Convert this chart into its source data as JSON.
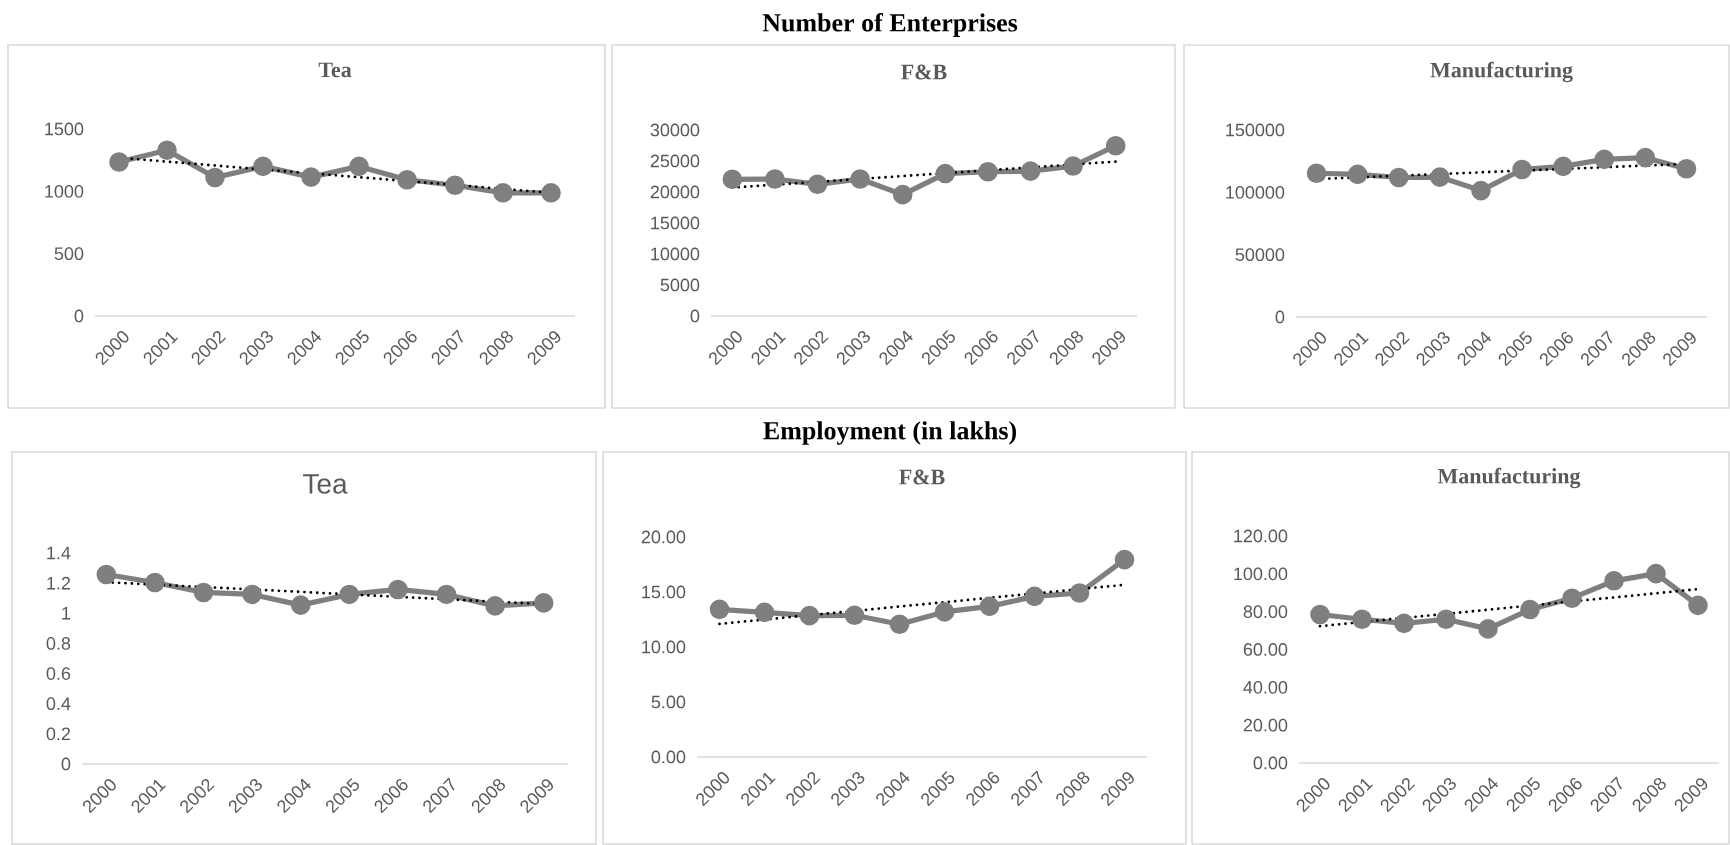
{
  "chart_data": [
    {
      "type": "line",
      "title": "Tea",
      "annotations": [
        "Number of Enterprises"
      ],
      "categories": [
        "2000",
        "2001",
        "2002",
        "2003",
        "2004",
        "2005",
        "2006",
        "2007",
        "2008",
        "2009"
      ],
      "marker": "circle",
      "line_style": "solid",
      "ylim": [
        0,
        1500
      ],
      "yticks": [
        0,
        500,
        1000,
        1500
      ],
      "series": [
        {
          "color": "#7f7f7f",
          "values": [
            1235,
            1330,
            1111,
            1200,
            1114,
            1200,
            1093,
            1049,
            988,
            988
          ]
        },
        {
          "type": "line",
          "color": "#000000",
          "line_style": "dotted",
          "marker": "none",
          "values": [
            1269,
            1238,
            1207,
            1175,
            1144,
            1113,
            1082,
            1051,
            1019,
            988
          ]
        }
      ]
    },
    {
      "type": "line",
      "title": "F&B",
      "categories": [
        "2000",
        "2001",
        "2002",
        "2003",
        "2004",
        "2005",
        "2006",
        "2007",
        "2008",
        "2009"
      ],
      "marker": "circle",
      "line_style": "solid",
      "ylim": [
        0,
        30000
      ],
      "yticks": [
        0,
        5000,
        10000,
        15000,
        20000,
        25000,
        30000
      ],
      "series": [
        {
          "color": "#7f7f7f",
          "values": [
            22050,
            22100,
            21240,
            22100,
            19570,
            22970,
            23260,
            23370,
            24180,
            27460
          ]
        },
        {
          "type": "line",
          "color": "#000000",
          "line_style": "dotted",
          "marker": "none",
          "values": [
            20700,
            21170,
            21630,
            22100,
            22570,
            23030,
            23500,
            23970,
            24430,
            24900
          ]
        }
      ]
    },
    {
      "type": "line",
      "title": "Manufacturing",
      "categories": [
        "2000",
        "2001",
        "2002",
        "2003",
        "2004",
        "2005",
        "2006",
        "2007",
        "2008",
        "2009"
      ],
      "marker": "circle",
      "line_style": "solid",
      "ylim": [
        0,
        150000
      ],
      "yticks": [
        0,
        50000,
        100000,
        150000
      ],
      "series": [
        {
          "color": "#7f7f7f",
          "values": [
            115300,
            114400,
            111900,
            112200,
            101400,
            118300,
            120800,
            126400,
            127800,
            118900
          ]
        },
        {
          "type": "line",
          "color": "#000000",
          "line_style": "dotted",
          "marker": "none",
          "values": [
            110600,
            111960,
            113310,
            114670,
            116020,
            117380,
            118730,
            120090,
            121440,
            122800
          ]
        }
      ]
    },
    {
      "type": "line",
      "title": "Tea",
      "annotations": [
        "Employment (in lakhs)"
      ],
      "categories": [
        "2000",
        "2001",
        "2002",
        "2003",
        "2004",
        "2005",
        "2006",
        "2007",
        "2008",
        "2009"
      ],
      "marker": "circle",
      "line_style": "solid",
      "ylim": [
        0,
        1.4
      ],
      "yticks": [
        0,
        0.2,
        0.4,
        0.6,
        0.8,
        1,
        1.2,
        1.4
      ],
      "series": [
        {
          "color": "#7f7f7f",
          "values": [
            1.257,
            1.204,
            1.138,
            1.125,
            1.054,
            1.125,
            1.158,
            1.125,
            1.049,
            1.069
          ]
        },
        {
          "type": "line",
          "color": "#000000",
          "line_style": "dotted",
          "marker": "none",
          "values": [
            1.206,
            1.19,
            1.174,
            1.158,
            1.142,
            1.125,
            1.109,
            1.093,
            1.077,
            1.061
          ]
        }
      ]
    },
    {
      "type": "line",
      "title": "F&B",
      "categories": [
        "2000",
        "2001",
        "2002",
        "2003",
        "2004",
        "2005",
        "2006",
        "2007",
        "2008",
        "2009"
      ],
      "marker": "circle",
      "line_style": "solid",
      "ylim": [
        0,
        20
      ],
      "yticks": [
        {
          "value": 0,
          "label": "0.00"
        },
        {
          "value": 5,
          "label": "5.00"
        },
        {
          "value": 10,
          "label": "10.00"
        },
        {
          "value": 15,
          "label": "15.00"
        },
        {
          "value": 20,
          "label": "20.00"
        }
      ],
      "series": [
        {
          "color": "#7f7f7f",
          "values": [
            13.42,
            13.15,
            12.85,
            12.88,
            12.07,
            13.19,
            13.69,
            14.6,
            14.91,
            17.94
          ]
        },
        {
          "type": "line",
          "color": "#000000",
          "line_style": "dotted",
          "marker": "none",
          "values": [
            12.1,
            12.49,
            12.89,
            13.28,
            13.68,
            14.07,
            14.47,
            14.86,
            15.26,
            15.65
          ]
        }
      ]
    },
    {
      "type": "line",
      "title": "Manufacturing",
      "categories": [
        "2000",
        "2001",
        "2002",
        "2003",
        "2004",
        "2005",
        "2006",
        "2007",
        "2008",
        "2009"
      ],
      "marker": "circle",
      "line_style": "solid",
      "ylim": [
        0,
        120
      ],
      "yticks": [
        {
          "value": 0,
          "label": "0.00"
        },
        {
          "value": 20,
          "label": "20.00"
        },
        {
          "value": 40,
          "label": "40.00"
        },
        {
          "value": 60,
          "label": "60.00"
        },
        {
          "value": 80,
          "label": "80.00"
        },
        {
          "value": 100,
          "label": "100.00"
        },
        {
          "value": 120,
          "label": "120.00"
        }
      ],
      "series": [
        {
          "color": "#7f7f7f",
          "values": [
            78.5,
            76.0,
            73.8,
            76.0,
            70.9,
            81.1,
            87.1,
            96.3,
            100.1,
            83.3
          ]
        },
        {
          "type": "line",
          "color": "#000000",
          "line_style": "dotted",
          "marker": "none",
          "values": [
            72.3,
            74.5,
            76.7,
            78.8,
            81.0,
            83.2,
            85.4,
            87.5,
            89.7,
            91.9
          ]
        }
      ]
    }
  ]
}
